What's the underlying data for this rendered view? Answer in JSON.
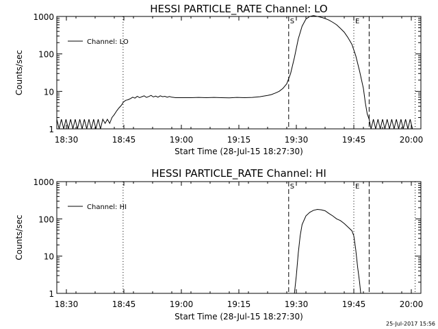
{
  "footer_timestamp": "25-Jul-2017 15:56",
  "chart_data": [
    {
      "type": "line",
      "title": "HESSI PARTICLE_RATE Channel: LO",
      "xlabel": "Start Time (28-Jul-15 18:27:30)",
      "ylabel": "Counts/sec",
      "x_units": "minutes since 18:27:30",
      "xlim": [
        0,
        95
      ],
      "ylim": [
        1,
        1000
      ],
      "y_scale": "log",
      "x_tick_labels": [
        "18:30",
        "18:45",
        "19:00",
        "19:15",
        "19:30",
        "19:45",
        "20:00"
      ],
      "x_tick_values": [
        2.5,
        17.5,
        32.5,
        47.5,
        62.5,
        77.5,
        92.5
      ],
      "y_tick_labels": [
        "1",
        "10",
        "100",
        "1000"
      ],
      "y_tick_values": [
        1,
        10,
        100,
        1000
      ],
      "legend": {
        "label": "Channel: LO",
        "placement": "top-left"
      },
      "markers": [
        {
          "label": "S",
          "x": 60.5,
          "style": "dashed"
        },
        {
          "label": "E",
          "x": 77.5,
          "style": "dashed"
        }
      ],
      "dashed_lines_x": [
        60.5,
        81.5
      ],
      "dotted_lines_x": [
        17.3,
        77.5,
        93.5
      ],
      "series": [
        {
          "name": "Channel: LO",
          "x": [
            0,
            0.6,
            1.2,
            1.8,
            2.4,
            3.0,
            3.6,
            4.2,
            4.8,
            5.4,
            6.0,
            6.6,
            7.2,
            7.8,
            8.4,
            9.0,
            9.6,
            10.2,
            10.8,
            11.4,
            12.0,
            12.6,
            13.2,
            13.8,
            14.4,
            15.0,
            15.6,
            16.2,
            16.8,
            17.4,
            18.0,
            18.6,
            19.2,
            19.8,
            20.4,
            21.0,
            21.6,
            22.2,
            22.8,
            23.4,
            24.0,
            24.6,
            25.2,
            25.8,
            26.4,
            27.0,
            27.6,
            28.2,
            28.8,
            29.4,
            30.0,
            31,
            33,
            35,
            37,
            39,
            41,
            43,
            45,
            47,
            49,
            51,
            53,
            55,
            56,
            57,
            58,
            59,
            60,
            61,
            62,
            63,
            64,
            65,
            66,
            67,
            68,
            69,
            70,
            71,
            72,
            73,
            74,
            75,
            76,
            77,
            78,
            79,
            80,
            80.5,
            81,
            81.5,
            82,
            82.6,
            83.2,
            83.8,
            84.4,
            85.0,
            85.6,
            86.2,
            86.8,
            87.4,
            88.0,
            88.6,
            89.2,
            89.8,
            90.4,
            91.0,
            91.6,
            92.2,
            92.8
          ],
          "y": [
            1.8,
            1,
            1.8,
            1,
            1.8,
            1,
            1.8,
            1,
            1.8,
            1,
            1.8,
            1,
            1.8,
            1,
            1.8,
            1,
            1.8,
            1,
            1.8,
            1,
            1.8,
            1.4,
            1.8,
            1.4,
            2.0,
            2.4,
            3.0,
            3.6,
            4.2,
            5.2,
            5.8,
            6.0,
            6.4,
            7.0,
            6.6,
            7.4,
            6.8,
            7.2,
            7.6,
            6.9,
            7.3,
            7.8,
            7.1,
            7.5,
            7.0,
            7.6,
            7.2,
            7.4,
            7.0,
            7.3,
            7.0,
            6.8,
            6.8,
            6.8,
            6.9,
            6.8,
            6.9,
            6.8,
            6.7,
            6.9,
            6.8,
            6.9,
            7.2,
            7.8,
            8.2,
            9.0,
            10.0,
            12.0,
            16,
            30,
            80,
            250,
            550,
            850,
            1000,
            1050,
            1000,
            950,
            880,
            800,
            700,
            600,
            480,
            380,
            270,
            180,
            90,
            35,
            12,
            5,
            2.5,
            1.8,
            1,
            1.8,
            1,
            1.8,
            1,
            1.8,
            1,
            1.8,
            1,
            1.8,
            1,
            1.8,
            1,
            1.8,
            1,
            1.8,
            1,
            1.8,
            1
          ]
        }
      ]
    },
    {
      "type": "line",
      "title": "HESSI PARTICLE_RATE Channel: HI",
      "xlabel": "Start Time (28-Jul-15 18:27:30)",
      "ylabel": "Counts/sec",
      "x_units": "minutes since 18:27:30",
      "xlim": [
        0,
        95
      ],
      "ylim": [
        1,
        1000
      ],
      "y_scale": "log",
      "x_tick_labels": [
        "18:30",
        "18:45",
        "19:00",
        "19:15",
        "19:30",
        "19:45",
        "20:00"
      ],
      "x_tick_values": [
        2.5,
        17.5,
        32.5,
        47.5,
        62.5,
        77.5,
        92.5
      ],
      "y_tick_labels": [
        "1",
        "10",
        "100",
        "1000"
      ],
      "y_tick_values": [
        1,
        10,
        100,
        1000
      ],
      "legend": {
        "label": "Channel: HI",
        "placement": "top-left"
      },
      "markers": [
        {
          "label": "S",
          "x": 60.5,
          "style": "dashed"
        },
        {
          "label": "E",
          "x": 77.5,
          "style": "dashed"
        }
      ],
      "dashed_lines_x": [
        60.5,
        81.5
      ],
      "dotted_lines_x": [
        17.3,
        77.5,
        93.5
      ],
      "series": [
        {
          "name": "Channel: HI",
          "x": [
            62.0,
            62.5,
            63.0,
            63.5,
            64.0,
            65.0,
            66.0,
            67.0,
            68.0,
            69.0,
            70.0,
            71.0,
            72.0,
            73.0,
            74.0,
            75.0,
            76.0,
            77.0,
            77.5,
            78.0,
            78.5,
            79.0,
            79.3
          ],
          "y": [
            1,
            3,
            12,
            35,
            70,
            120,
            150,
            170,
            180,
            175,
            165,
            140,
            120,
            100,
            90,
            75,
            60,
            48,
            35,
            15,
            5,
            2,
            1
          ]
        }
      ]
    }
  ]
}
